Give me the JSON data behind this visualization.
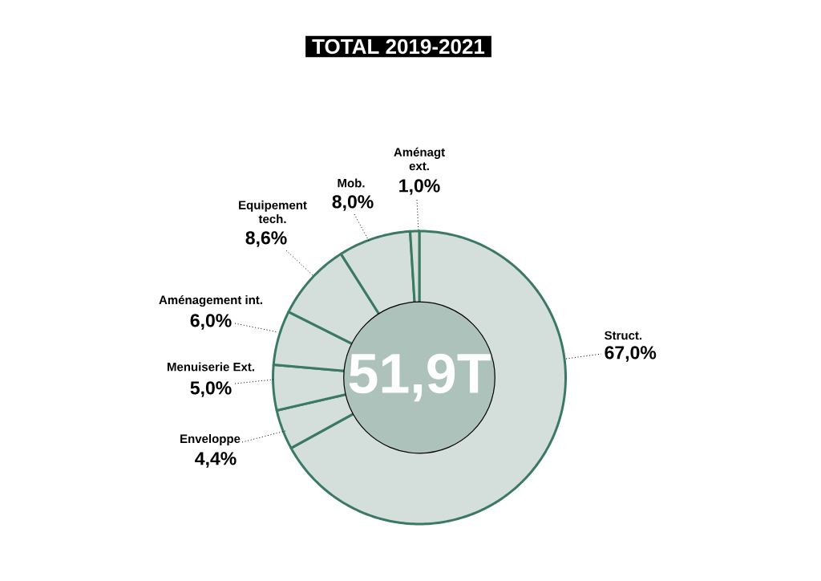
{
  "chart_data": {
    "type": "donut",
    "title": "TOTAL 2019-2021",
    "categories": [
      "Struct.",
      "Enveloppe",
      "Menuiserie Ext.",
      "Aménagement int.",
      "Equipement tech.",
      "Mob.",
      "Aménagt ext."
    ],
    "values": [
      67.0,
      4.4,
      5.0,
      6.0,
      8.6,
      8.0,
      1.0
    ],
    "colors": [
      "#d4dfdb",
      "#d4dfdb",
      "#d4dfdb",
      "#d4dfdb",
      "#d4dfdb",
      "#d4dfdb",
      "#d4dfdb"
    ],
    "value_labels": [
      "67,0%",
      "4,4%",
      "5,0%",
      "6,0%",
      "8,6%",
      "8,0%",
      "1,0%"
    ],
    "annotations": [
      "51,9T"
    ]
  }
}
